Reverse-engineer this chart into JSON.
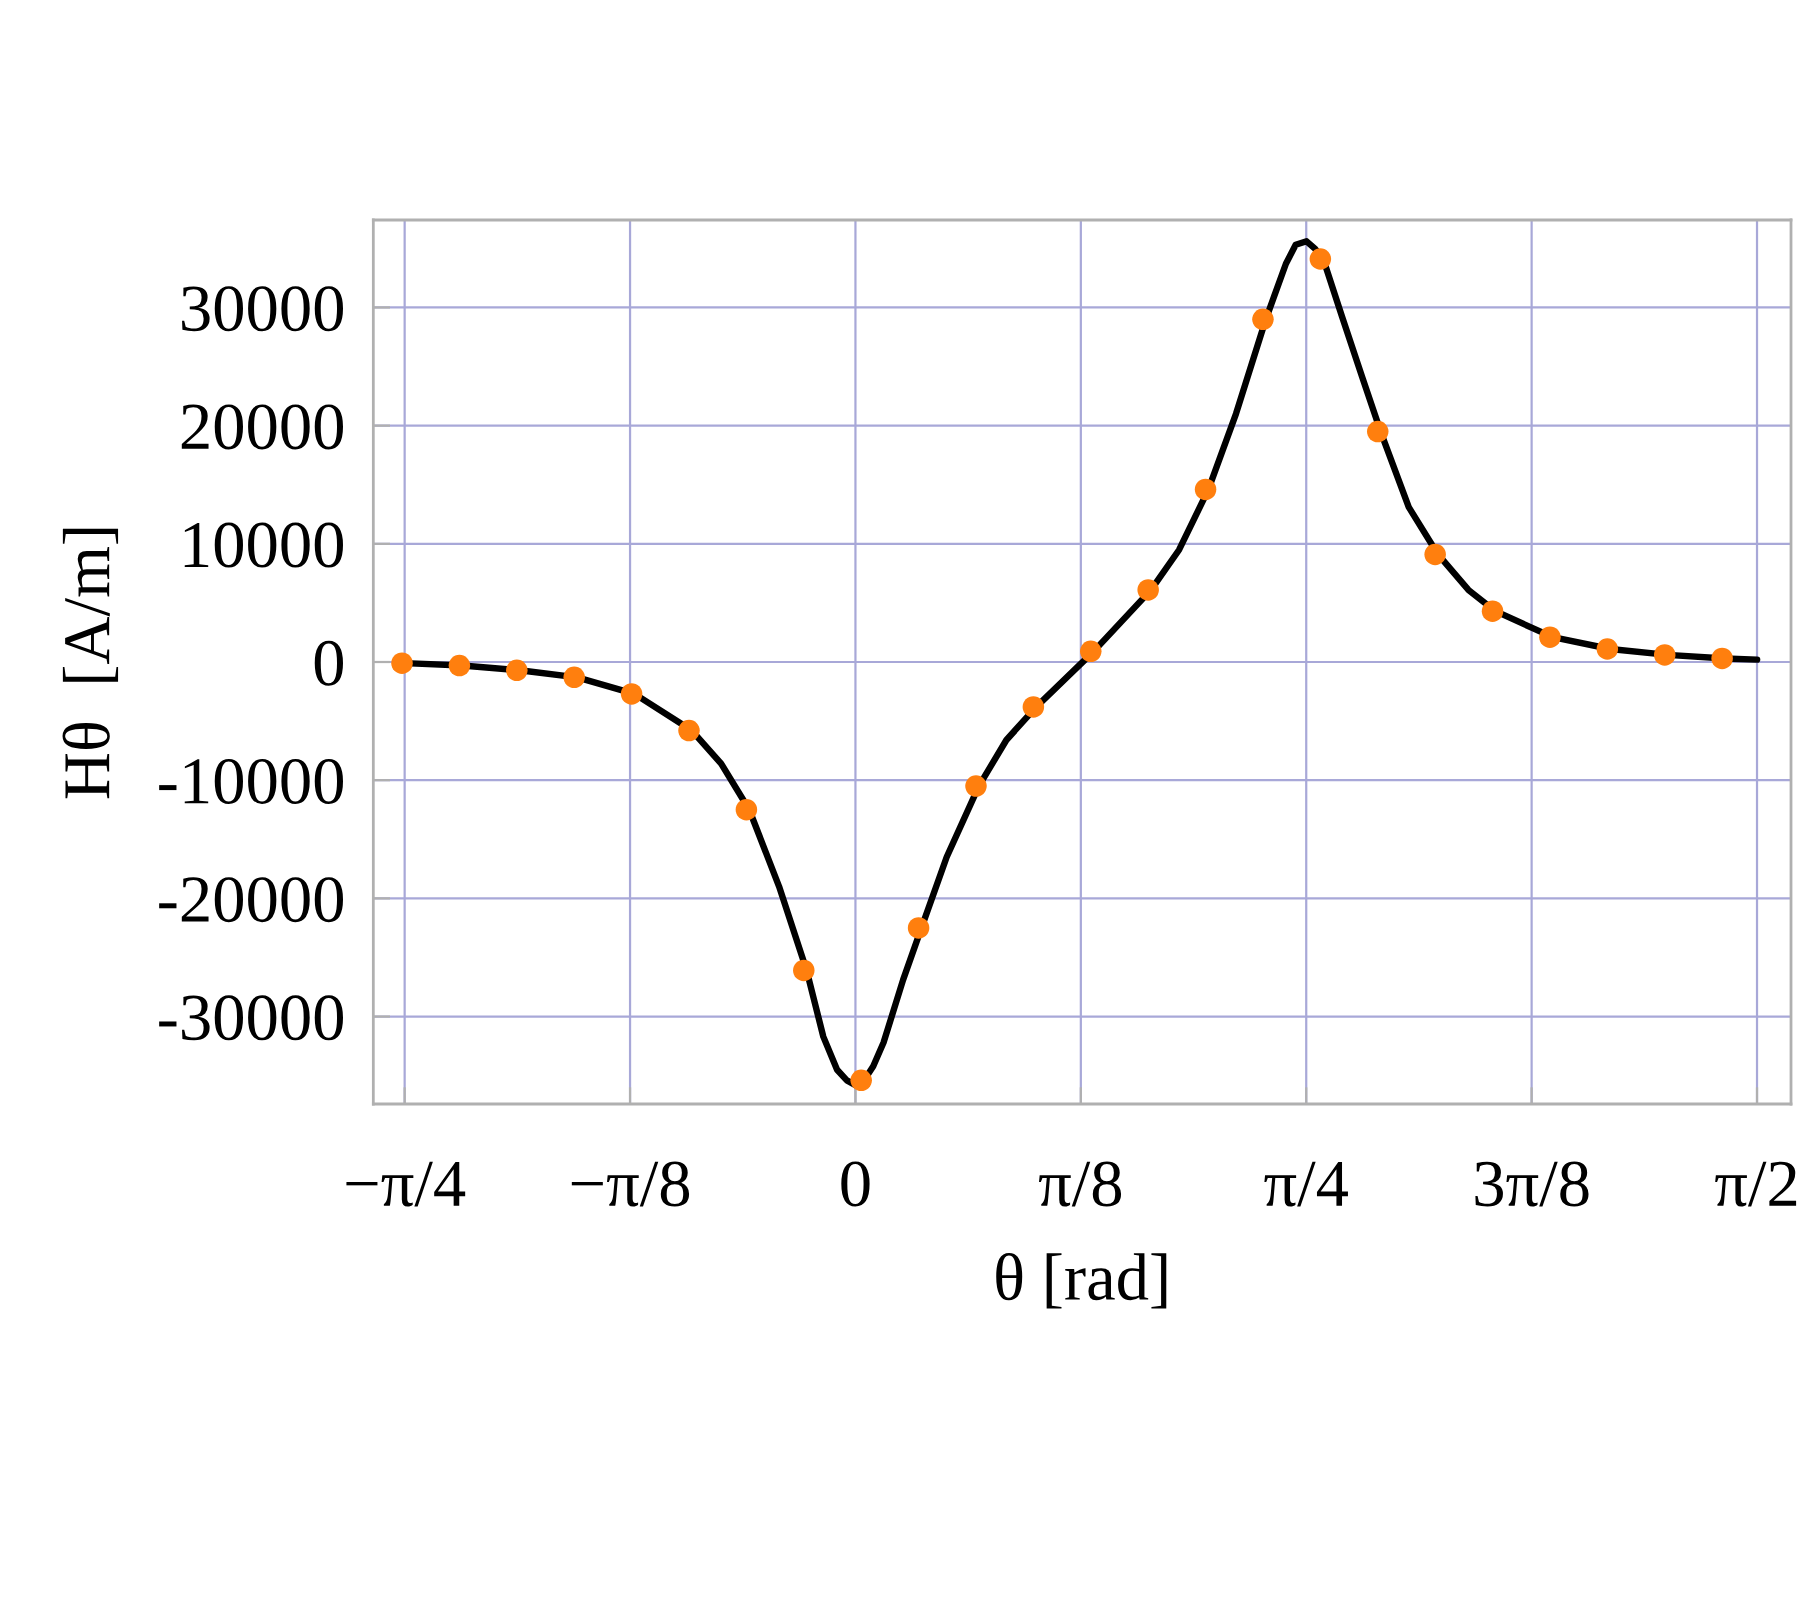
{
  "chart_data": {
    "type": "line",
    "xlabel": "θ [rad]",
    "ylabel": "Hθ  [A/m]",
    "series": [
      {
        "color": "#000000",
        "x": [
          -0.785,
          -0.685,
          -0.585,
          -0.485,
          -0.385,
          -0.285,
          -0.234,
          -0.185,
          -0.133,
          -0.085,
          -0.056,
          -0.032,
          -0.015,
          0,
          0.015,
          0.031,
          0.049,
          0.083,
          0.115,
          0.159,
          0.215,
          0.263,
          0.315,
          0.415,
          0.515,
          0.564,
          0.615,
          0.663,
          0.715,
          0.75,
          0.767,
          0.786,
          0.8,
          0.815,
          0.848,
          0.883,
          0.915,
          0.964,
          1.015,
          1.068,
          1.115,
          1.215,
          1.315,
          1.415,
          1.515,
          1.571
        ],
        "values": [
          -100,
          -300,
          -700,
          -1300,
          -2700,
          -5800,
          -8600,
          -12500,
          -19000,
          -26100,
          -31700,
          -34500,
          -35400,
          -35800,
          -35400,
          -34200,
          -32200,
          -26900,
          -22500,
          -16500,
          -10500,
          -6600,
          -3800,
          900,
          6100,
          9500,
          14600,
          21000,
          29000,
          33700,
          35300,
          35600,
          35000,
          34100,
          29200,
          24100,
          19500,
          13100,
          9100,
          6100,
          4300,
          2100,
          1100,
          600,
          300,
          200
        ]
      },
      {
        "type": "scatter",
        "color": "#ff7f0e",
        "marker": "circle",
        "x": [
          -0.79,
          -0.69,
          -0.59,
          -0.49,
          -0.39,
          -0.29,
          -0.19,
          -0.09,
          0.01,
          0.11,
          0.21,
          0.31,
          0.41,
          0.51,
          0.61,
          0.71,
          0.81,
          0.91,
          1.01,
          1.11,
          1.21,
          1.31,
          1.41,
          1.51
        ],
        "values": [
          -100,
          -300,
          -700,
          -1300,
          -2700,
          -5800,
          -12500,
          -26100,
          -35400,
          -22500,
          -10500,
          -3800,
          900,
          6100,
          14600,
          29000,
          34100,
          19500,
          9100,
          4300,
          2100,
          1100,
          600,
          300
        ]
      }
    ],
    "xlim": [
      -0.84,
      1.63
    ],
    "ylim": [
      -37400,
      37400
    ],
    "xticks": [
      {
        "value": -0.7854,
        "label": "−π/4"
      },
      {
        "value": -0.3927,
        "label": "−π/8"
      },
      0,
      {
        "value": 0.3927,
        "label": "π/8"
      },
      {
        "value": 0.7854,
        "label": "π/4"
      },
      {
        "value": 1.1781,
        "label": "3π/8"
      },
      {
        "value": 1.5708,
        "label": "π/2"
      }
    ],
    "yticks": [
      -30000,
      -20000,
      -10000,
      0,
      10000,
      20000,
      30000
    ],
    "grid": true
  }
}
